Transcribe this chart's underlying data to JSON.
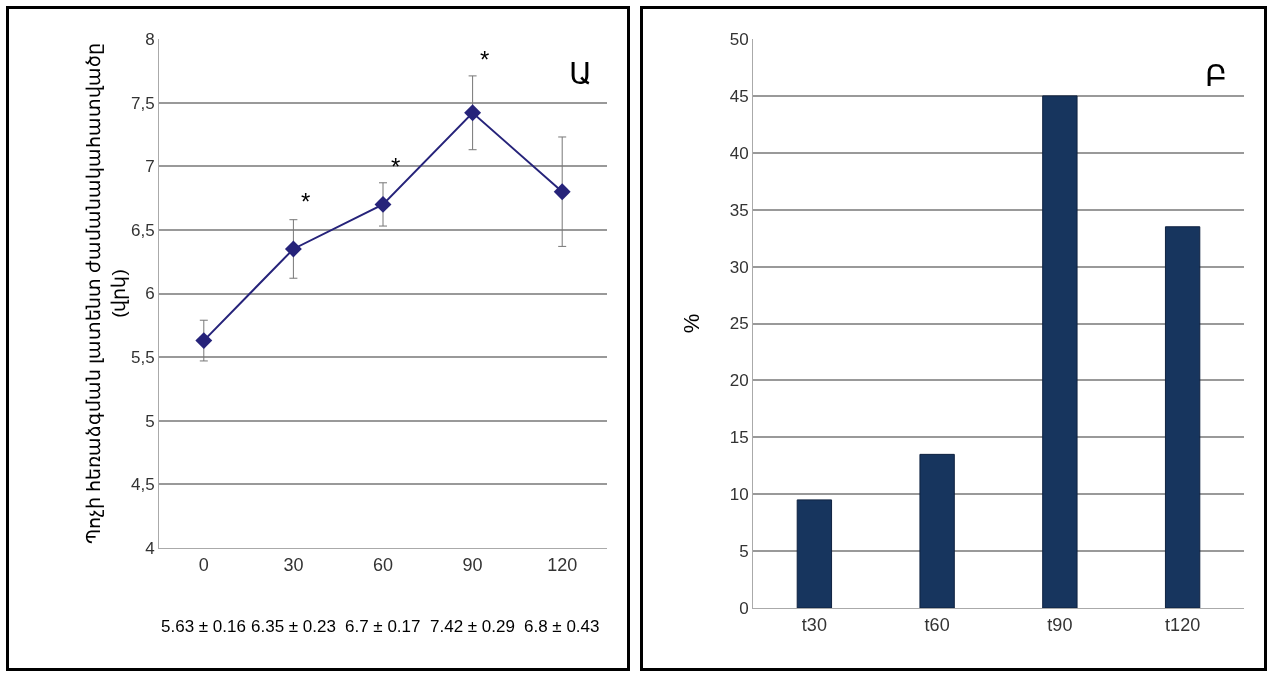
{
  "chart_data": [
    {
      "type": "line",
      "ylabel": "Պոչի հեռաձգման լատենտ ժամանակահատվածը (վրկ)",
      "categories": [
        "0",
        "30",
        "60",
        "90",
        "120"
      ],
      "series": [
        {
          "color": "#26237a",
          "values": [
            5.63,
            6.35,
            6.7,
            7.42,
            6.8
          ],
          "errors": [
            0.16,
            0.23,
            0.17,
            0.29,
            0.43
          ],
          "value_labels": [
            "5.63 ± 0.16",
            "6.35 ± 0.23",
            "6.7 ± 0.17",
            "7.42 ± 0.29",
            "6.8 ± 0.43"
          ]
        }
      ],
      "ylim": [
        4,
        8
      ],
      "yticks": [
        4,
        {
          "value": 4.5,
          "label": "4,5"
        },
        5,
        {
          "value": 5.5,
          "label": "5,5"
        },
        6,
        {
          "value": 6.5,
          "label": "6,5"
        },
        7,
        {
          "value": 7.5,
          "label": "7,5"
        },
        8
      ],
      "grid": "y",
      "marker": "diamond",
      "line_style": "solid",
      "legend": false,
      "annotations": [
        "Ա",
        {
          "text": "*",
          "x": "30",
          "y": 6.6
        },
        {
          "text": "*",
          "x": "60",
          "y": 6.88
        },
        {
          "text": "*",
          "x": "90",
          "y": 7.72
        }
      ]
    },
    {
      "type": "bar",
      "ylabel": "%",
      "categories": [
        "t30",
        "t60",
        "t90",
        "t120"
      ],
      "series": [
        {
          "color": "#17355e",
          "values": [
            9.5,
            13.5,
            45,
            33.5
          ]
        }
      ],
      "ylim": [
        0,
        50
      ],
      "yticks": [
        0,
        5,
        10,
        15,
        20,
        25,
        30,
        35,
        40,
        45,
        50
      ],
      "grid": "y",
      "legend": false,
      "annotations": [
        "Բ"
      ]
    }
  ]
}
